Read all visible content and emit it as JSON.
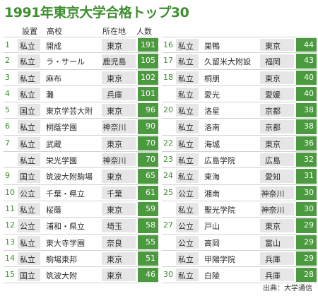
{
  "title": "1991年東京大学合格トップ30",
  "headers": {
    "setup": "設置",
    "school": "高校",
    "location": "所在地",
    "count": "人数"
  },
  "left_rows": [
    {
      "rank": "1",
      "type": "私立",
      "school": "開成",
      "location": "東京",
      "count": "191"
    },
    {
      "rank": "2",
      "type": "私立",
      "school": "ラ・サール",
      "location": "鹿児島",
      "count": "105"
    },
    {
      "rank": "3",
      "type": "私立",
      "school": "麻布",
      "location": "東京",
      "count": "102"
    },
    {
      "rank": "4",
      "type": "私立",
      "school": "灘",
      "location": "兵庫",
      "count": "101"
    },
    {
      "rank": "5",
      "type": "国立",
      "school": "東京学芸大附",
      "location": "東京",
      "count": "96"
    },
    {
      "rank": "6",
      "type": "私立",
      "school": "桐蔭学園",
      "location": "神奈川",
      "count": "90"
    },
    {
      "rank": "7",
      "type": "私立",
      "school": "武蔵",
      "location": "東京",
      "count": "70"
    },
    {
      "rank": "",
      "type": "私立",
      "school": "栄光学園",
      "location": "神奈川",
      "count": "70"
    },
    {
      "rank": "9",
      "type": "国立",
      "school": "筑波大附駒場",
      "location": "東京",
      "count": "65"
    },
    {
      "rank": "10",
      "type": "公立",
      "school": "千葉・県立",
      "location": "千葉",
      "count": "61"
    },
    {
      "rank": "11",
      "type": "私立",
      "school": "桜蔭",
      "location": "東京",
      "count": "59"
    },
    {
      "rank": "12",
      "type": "公立",
      "school": "浦和・県立",
      "location": "埼玉",
      "count": "58"
    },
    {
      "rank": "13",
      "type": "私立",
      "school": "東大寺学園",
      "location": "奈良",
      "count": "55"
    },
    {
      "rank": "14",
      "type": "私立",
      "school": "駒場東邦",
      "location": "東京",
      "count": "51"
    },
    {
      "rank": "15",
      "type": "国立",
      "school": "筑波大附",
      "location": "東京",
      "count": "46"
    }
  ],
  "right_rows": [
    {
      "rank": "16",
      "type": "私立",
      "school": "巣鴨",
      "location": "東京",
      "count": "44"
    },
    {
      "rank": "17",
      "type": "私立",
      "school": "久留米大附設",
      "location": "福岡",
      "count": "43"
    },
    {
      "rank": "18",
      "type": "私立",
      "school": "桐朋",
      "location": "東京",
      "count": "40"
    },
    {
      "rank": "",
      "type": "私立",
      "school": "愛光",
      "location": "愛媛",
      "count": "40"
    },
    {
      "rank": "20",
      "type": "私立",
      "school": "洛星",
      "location": "京都",
      "count": "38"
    },
    {
      "rank": "",
      "type": "私立",
      "school": "洛南",
      "location": "京都",
      "count": "38"
    },
    {
      "rank": "22",
      "type": "私立",
      "school": "海城",
      "location": "東京",
      "count": "36"
    },
    {
      "rank": "23",
      "type": "私立",
      "school": "広島学院",
      "location": "広島",
      "count": "32"
    },
    {
      "rank": "24",
      "type": "私立",
      "school": "東海",
      "location": "愛知",
      "count": "31"
    },
    {
      "rank": "25",
      "type": "公立",
      "school": "湘南",
      "location": "神奈川",
      "count": "30"
    },
    {
      "rank": "",
      "type": "私立",
      "school": "聖光学院",
      "location": "神奈川",
      "count": "30"
    },
    {
      "rank": "27",
      "type": "公立",
      "school": "戸山",
      "location": "東京",
      "count": "29"
    },
    {
      "rank": "",
      "type": "公立",
      "school": "高岡",
      "location": "富山",
      "count": "29"
    },
    {
      "rank": "",
      "type": "私立",
      "school": "甲陽学院",
      "location": "兵庫",
      "count": "29"
    },
    {
      "rank": "30",
      "type": "私立",
      "school": "白陵",
      "location": "兵庫",
      "count": "28"
    }
  ],
  "source": "出典：大学通信",
  "colors": {
    "accent": "#4c9a3f",
    "rank_text": "#3d8f2f",
    "cell_gray": "#e6e6e6"
  }
}
